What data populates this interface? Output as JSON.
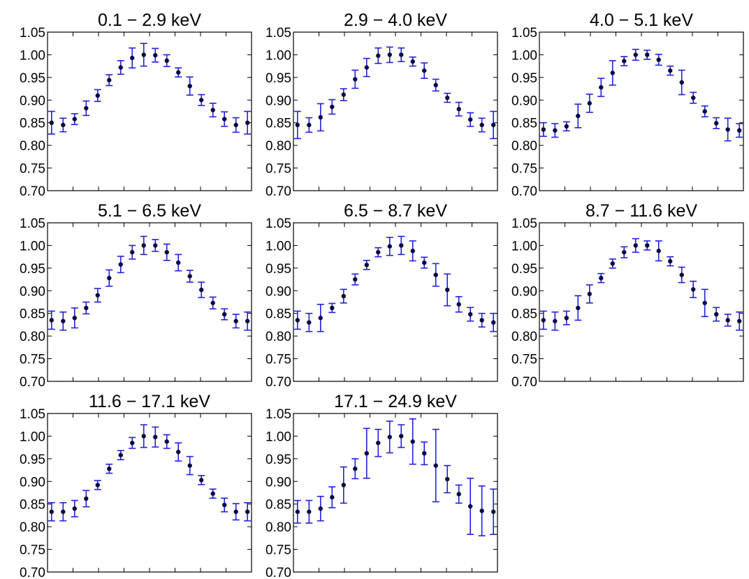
{
  "chart_data": [
    {
      "type": "scatter",
      "title": "0.1 − 2.9 keV",
      "ylim": [
        0.7,
        1.05
      ],
      "yticks": [
        "1.05",
        "1.00",
        "0.95",
        "0.90",
        "0.85",
        "0.80",
        "0.75",
        "0.70"
      ],
      "x": [
        0,
        1,
        2,
        3,
        4,
        5,
        6,
        7,
        8,
        9,
        10,
        11,
        12,
        13,
        14,
        15,
        16,
        17
      ],
      "y": [
        0.85,
        0.845,
        0.858,
        0.882,
        0.91,
        0.944,
        0.972,
        0.993,
        1.0,
        0.999,
        0.987,
        0.961,
        0.931,
        0.9,
        0.878,
        0.858,
        0.845,
        0.85
      ],
      "err": [
        0.025,
        0.015,
        0.012,
        0.016,
        0.013,
        0.012,
        0.015,
        0.022,
        0.025,
        0.015,
        0.013,
        0.01,
        0.02,
        0.012,
        0.015,
        0.016,
        0.016,
        0.025
      ]
    },
    {
      "type": "scatter",
      "title": "2.9 − 4.0 keV",
      "ylim": [
        0.7,
        1.05
      ],
      "yticks": [
        "1.05",
        "1.00",
        "0.95",
        "0.90",
        "0.85",
        "0.80",
        "0.75",
        "0.70"
      ],
      "x": [
        0,
        1,
        2,
        3,
        4,
        5,
        6,
        7,
        8,
        9,
        10,
        11,
        12,
        13,
        14,
        15,
        16,
        17
      ],
      "y": [
        0.845,
        0.845,
        0.862,
        0.885,
        0.912,
        0.946,
        0.972,
        0.998,
        1.0,
        1.0,
        0.985,
        0.965,
        0.933,
        0.905,
        0.88,
        0.857,
        0.845,
        0.845
      ],
      "err": [
        0.03,
        0.016,
        0.03,
        0.016,
        0.013,
        0.02,
        0.02,
        0.017,
        0.017,
        0.015,
        0.01,
        0.017,
        0.013,
        0.01,
        0.015,
        0.015,
        0.015,
        0.03
      ]
    },
    {
      "type": "scatter",
      "title": "4.0 − 5.1 keV",
      "ylim": [
        0.7,
        1.05
      ],
      "yticks": [
        "1.05",
        "1.00",
        "0.95",
        "0.90",
        "0.85",
        "0.80",
        "0.75",
        "0.70"
      ],
      "x": [
        0,
        1,
        2,
        3,
        4,
        5,
        6,
        7,
        8,
        9,
        10,
        11,
        12,
        13,
        14,
        15,
        16,
        17
      ],
      "y": [
        0.835,
        0.833,
        0.842,
        0.865,
        0.893,
        0.928,
        0.96,
        0.986,
        1.0,
        1.0,
        0.989,
        0.965,
        0.939,
        0.905,
        0.875,
        0.849,
        0.835,
        0.833
      ],
      "err": [
        0.015,
        0.015,
        0.01,
        0.026,
        0.02,
        0.02,
        0.027,
        0.01,
        0.012,
        0.01,
        0.012,
        0.01,
        0.027,
        0.012,
        0.012,
        0.012,
        0.025,
        0.015
      ]
    },
    {
      "type": "scatter",
      "title": "5.1 − 6.5 keV",
      "ylim": [
        0.7,
        1.05
      ],
      "yticks": [
        "1.05",
        "1.00",
        "0.95",
        "0.90",
        "0.85",
        "0.80",
        "0.75",
        "0.70"
      ],
      "x": [
        0,
        1,
        2,
        3,
        4,
        5,
        6,
        7,
        8,
        9,
        10,
        11,
        12,
        13,
        14,
        15,
        16,
        17
      ],
      "y": [
        0.835,
        0.833,
        0.84,
        0.862,
        0.89,
        0.928,
        0.958,
        0.985,
        1.0,
        1.0,
        0.985,
        0.962,
        0.932,
        0.902,
        0.873,
        0.848,
        0.833,
        0.833
      ],
      "err": [
        0.02,
        0.02,
        0.022,
        0.013,
        0.015,
        0.018,
        0.018,
        0.015,
        0.02,
        0.013,
        0.018,
        0.018,
        0.013,
        0.017,
        0.013,
        0.012,
        0.015,
        0.02
      ]
    },
    {
      "type": "scatter",
      "title": "6.5 − 8.7 keV",
      "ylim": [
        0.7,
        1.05
      ],
      "yticks": [
        "1.05",
        "1.00",
        "0.95",
        "0.90",
        "0.85",
        "0.80",
        "0.75",
        "0.70"
      ],
      "x": [
        0,
        1,
        2,
        3,
        4,
        5,
        6,
        7,
        8,
        9,
        10,
        11,
        12,
        13,
        14,
        15,
        16,
        17
      ],
      "y": [
        0.835,
        0.83,
        0.84,
        0.862,
        0.888,
        0.925,
        0.957,
        0.985,
        0.998,
        1.0,
        0.988,
        0.962,
        0.935,
        0.902,
        0.87,
        0.848,
        0.835,
        0.83
      ],
      "err": [
        0.02,
        0.02,
        0.03,
        0.01,
        0.015,
        0.012,
        0.01,
        0.01,
        0.02,
        0.02,
        0.022,
        0.012,
        0.025,
        0.035,
        0.017,
        0.015,
        0.015,
        0.02
      ]
    },
    {
      "type": "scatter",
      "title": "8.7 − 11.6 keV",
      "ylim": [
        0.7,
        1.05
      ],
      "yticks": [
        "1.05",
        "1.00",
        "0.95",
        "0.90",
        "0.85",
        "0.80",
        "0.75",
        "0.70"
      ],
      "x": [
        0,
        1,
        2,
        3,
        4,
        5,
        6,
        7,
        8,
        9,
        10,
        11,
        12,
        13,
        14,
        15,
        16,
        17
      ],
      "y": [
        0.835,
        0.833,
        0.84,
        0.862,
        0.893,
        0.928,
        0.96,
        0.985,
        1.0,
        1.0,
        0.988,
        0.965,
        0.935,
        0.903,
        0.873,
        0.848,
        0.835,
        0.833
      ],
      "err": [
        0.02,
        0.02,
        0.015,
        0.027,
        0.02,
        0.01,
        0.01,
        0.012,
        0.015,
        0.01,
        0.022,
        0.01,
        0.017,
        0.018,
        0.03,
        0.015,
        0.013,
        0.02
      ]
    },
    {
      "type": "scatter",
      "title": "11.6 − 17.1 keV",
      "ylim": [
        0.7,
        1.05
      ],
      "yticks": [
        "1.05",
        "1.00",
        "0.95",
        "0.90",
        "0.85",
        "0.80",
        "0.75",
        "0.70"
      ],
      "x": [
        0,
        1,
        2,
        3,
        4,
        5,
        6,
        7,
        8,
        9,
        10,
        11,
        12,
        13,
        14,
        15,
        16,
        17
      ],
      "y": [
        0.833,
        0.833,
        0.84,
        0.862,
        0.892,
        0.928,
        0.958,
        0.985,
        1.0,
        0.998,
        0.988,
        0.965,
        0.935,
        0.903,
        0.873,
        0.848,
        0.833,
        0.833
      ],
      "err": [
        0.02,
        0.02,
        0.018,
        0.018,
        0.01,
        0.01,
        0.01,
        0.012,
        0.025,
        0.022,
        0.015,
        0.02,
        0.02,
        0.01,
        0.01,
        0.015,
        0.018,
        0.02
      ]
    },
    {
      "type": "scatter",
      "title": "17.1 − 24.9 keV",
      "ylim": [
        0.7,
        1.05
      ],
      "yticks": [
        "1.05",
        "1.00",
        "0.95",
        "0.90",
        "0.85",
        "0.80",
        "0.75",
        "0.70"
      ],
      "x": [
        0,
        1,
        2,
        3,
        4,
        5,
        6,
        7,
        8,
        9,
        10,
        11,
        12,
        13,
        14,
        15,
        16,
        17
      ],
      "y": [
        0.833,
        0.833,
        0.84,
        0.865,
        0.892,
        0.928,
        0.962,
        0.985,
        0.998,
        1.0,
        0.988,
        0.962,
        0.935,
        0.905,
        0.872,
        0.845,
        0.835,
        0.833
      ],
      "err": [
        0.025,
        0.025,
        0.027,
        0.023,
        0.04,
        0.022,
        0.055,
        0.03,
        0.035,
        0.025,
        0.05,
        0.025,
        0.08,
        0.03,
        0.02,
        0.062,
        0.055,
        0.05
      ]
    }
  ]
}
